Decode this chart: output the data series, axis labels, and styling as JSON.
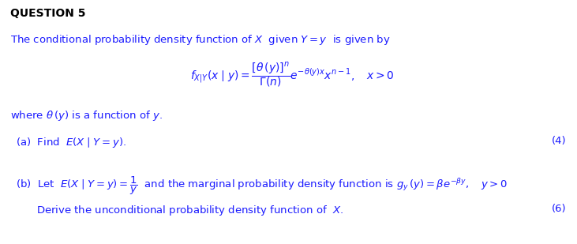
{
  "title": "QUESTION 5",
  "bg_color": "#ffffff",
  "text_color": "#1a1aff",
  "dark_color": "#000000",
  "figsize": [
    7.31,
    3.09
  ],
  "dpi": 100
}
